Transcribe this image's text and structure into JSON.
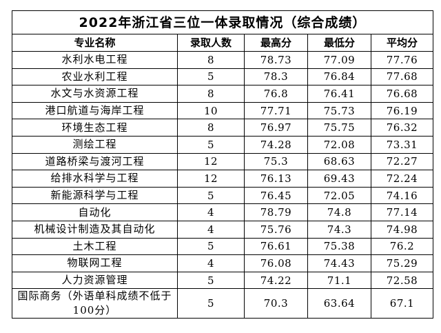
{
  "title": "2022年浙江省三位一体录取情况（综合成绩）",
  "headers": [
    "专业名称",
    "录取人数",
    "最高分",
    "最低分",
    "平均分"
  ],
  "rows": [
    [
      "水利水电工程",
      "8",
      "78.73",
      "77.09",
      "77.76"
    ],
    [
      "农业水利工程",
      "5",
      "78.3",
      "76.84",
      "77.68"
    ],
    [
      "水文与水资源工程",
      "8",
      "76.8",
      "76.41",
      "76.68"
    ],
    [
      "港口航道与海岸工程",
      "10",
      "77.71",
      "75.73",
      "76.19"
    ],
    [
      "环境生态工程",
      "8",
      "76.97",
      "75.75",
      "76.32"
    ],
    [
      "测绘工程",
      "5",
      "74.28",
      "72.08",
      "73.31"
    ],
    [
      "道路桥梁与渡河工程",
      "12",
      "75.3",
      "68.63",
      "72.27"
    ],
    [
      "给排水科学与工程",
      "12",
      "76.13",
      "69.43",
      "72.24"
    ],
    [
      "新能源科学与工程",
      "5",
      "76.45",
      "72.05",
      "74.16"
    ],
    [
      "自动化",
      "4",
      "78.79",
      "74.8",
      "77.14"
    ],
    [
      "机械设计制造及其自动化",
      "4",
      "75.76",
      "74.3",
      "74.98"
    ],
    [
      "土木工程",
      "5",
      "76.61",
      "75.38",
      "76.2"
    ],
    [
      "物联网工程",
      "4",
      "76.08",
      "74.43",
      "75.29"
    ],
    [
      "人力资源管理",
      "5",
      "74.22",
      "71.1",
      "72.58"
    ],
    [
      "国际商务（外语单科成绩不低于100分）",
      "5",
      "70.3",
      "63.64",
      "67.1"
    ]
  ]
}
